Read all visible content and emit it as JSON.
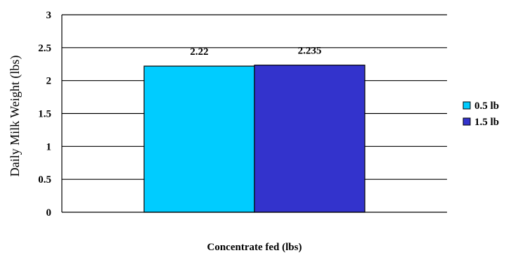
{
  "chart_data": {
    "type": "bar",
    "title": "",
    "xlabel": "Concentrate fed (lbs)",
    "ylabel": "Daily Milk Weight (lbs)",
    "ylim": [
      0,
      3
    ],
    "yticks": [
      "0",
      "0.5",
      "1",
      "1.5",
      "2",
      "2.5",
      "3"
    ],
    "grid": true,
    "legend_position": "right",
    "categories": [
      ""
    ],
    "series": [
      {
        "name": "0.5 lb",
        "values": [
          2.22
        ],
        "label": "2.22",
        "color": "#00CCFF"
      },
      {
        "name": "1.5 lb",
        "values": [
          2.235
        ],
        "label": "2.235",
        "color": "#3333CC"
      }
    ]
  }
}
